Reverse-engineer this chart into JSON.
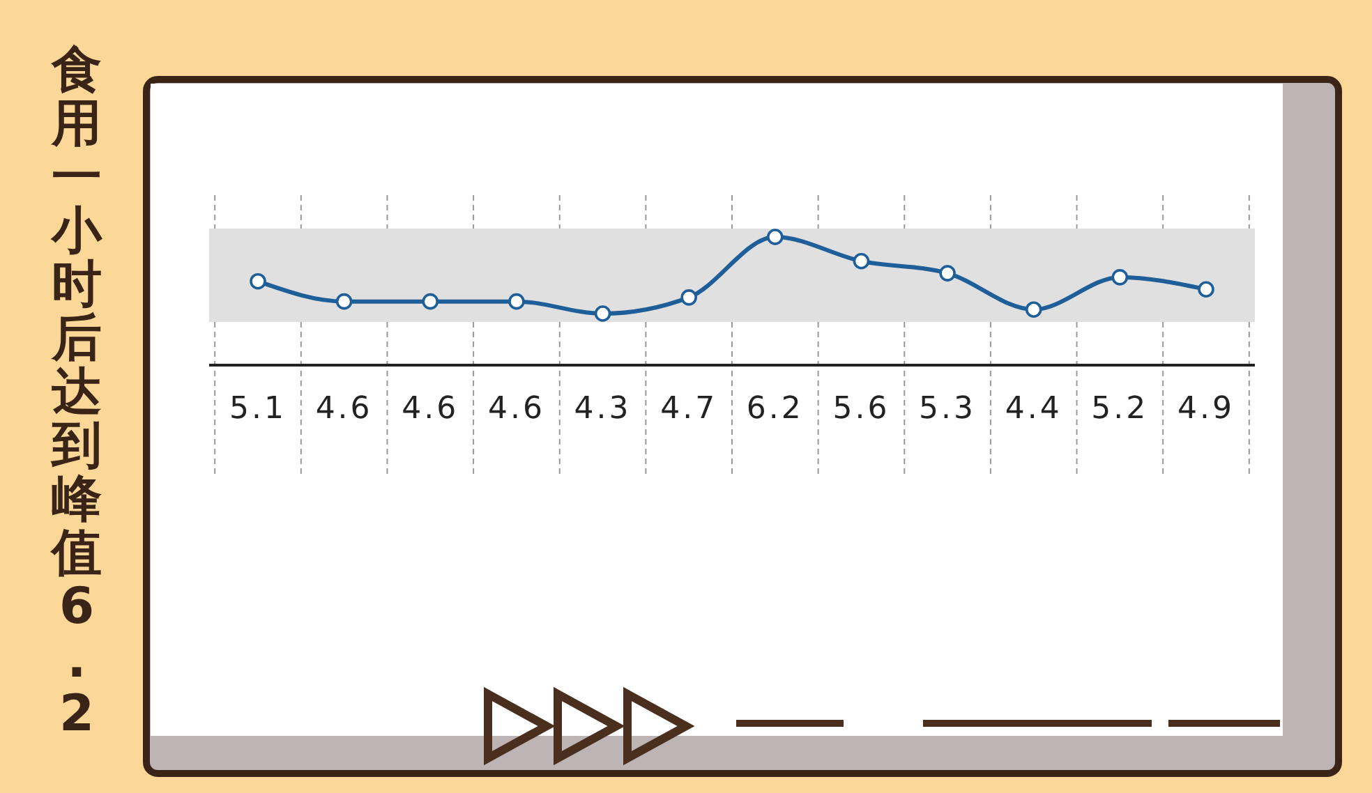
{
  "chart_data": {
    "type": "line",
    "title": "食用一小时后达到峰值6.2",
    "categories": [
      null,
      null,
      null,
      null,
      null,
      null,
      null,
      null,
      null,
      null,
      null,
      null
    ],
    "marker": "circle",
    "data_labels": true,
    "series": [
      {
        "color": "#1f5f99",
        "values": [
          5.1,
          4.6,
          4.6,
          4.6,
          4.3,
          4.7,
          6.2,
          5.6,
          5.3,
          4.4,
          5.2,
          4.9
        ]
      }
    ]
  }
}
